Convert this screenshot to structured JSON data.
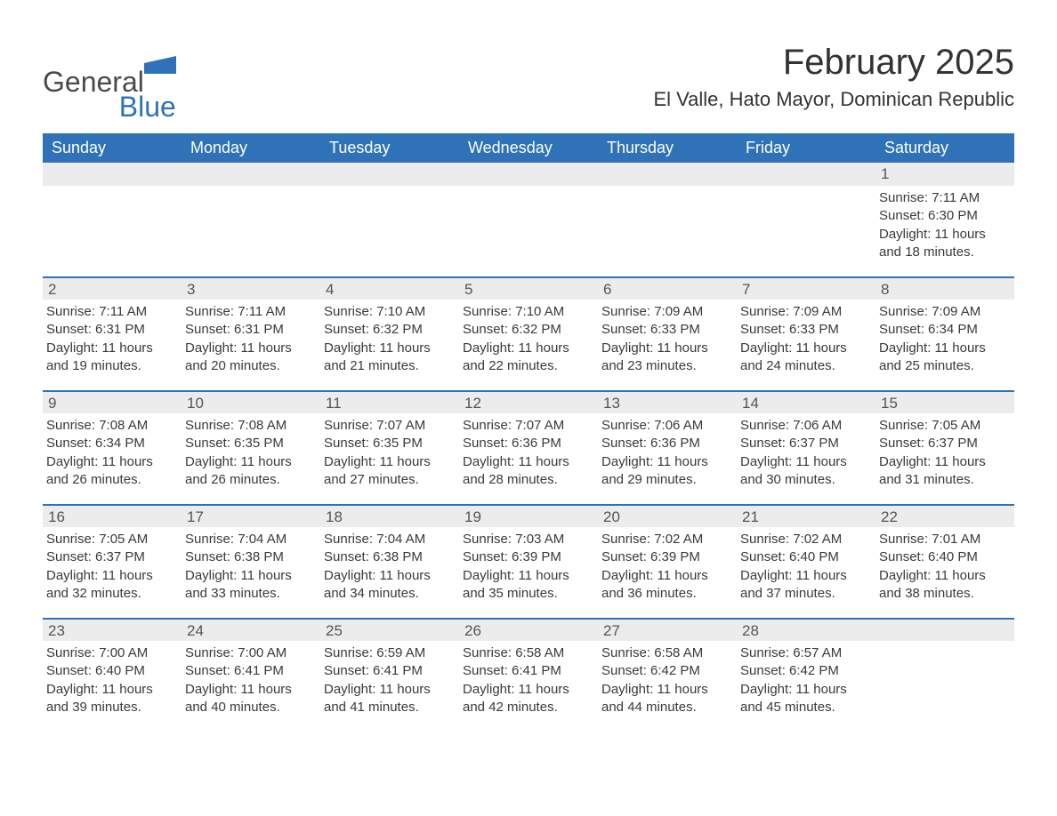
{
  "brand": {
    "name_line1": "General",
    "name_line2": "Blue",
    "logo_color": "#2f72b8"
  },
  "title": {
    "month": "February 2025",
    "location": "El Valle, Hato Mayor, Dominican Republic"
  },
  "colors": {
    "header_bg": "#2f72b8",
    "header_text": "#ffffff",
    "daynum_bg": "#ececec",
    "body_text": "#3a3a3a",
    "page_bg": "#ffffff",
    "row_border": "#2f72b8"
  },
  "typography": {
    "month_fontsize": 40,
    "location_fontsize": 22,
    "dow_fontsize": 18,
    "daynum_fontsize": 17,
    "body_fontsize": 15
  },
  "calendar": {
    "days_of_week": [
      "Sunday",
      "Monday",
      "Tuesday",
      "Wednesday",
      "Thursday",
      "Friday",
      "Saturday"
    ],
    "weeks": [
      [
        {
          "num": "",
          "sunrise": "",
          "sunset": "",
          "daylight": ""
        },
        {
          "num": "",
          "sunrise": "",
          "sunset": "",
          "daylight": ""
        },
        {
          "num": "",
          "sunrise": "",
          "sunset": "",
          "daylight": ""
        },
        {
          "num": "",
          "sunrise": "",
          "sunset": "",
          "daylight": ""
        },
        {
          "num": "",
          "sunrise": "",
          "sunset": "",
          "daylight": ""
        },
        {
          "num": "",
          "sunrise": "",
          "sunset": "",
          "daylight": ""
        },
        {
          "num": "1",
          "sunrise": "Sunrise: 7:11 AM",
          "sunset": "Sunset: 6:30 PM",
          "daylight": "Daylight: 11 hours and 18 minutes."
        }
      ],
      [
        {
          "num": "2",
          "sunrise": "Sunrise: 7:11 AM",
          "sunset": "Sunset: 6:31 PM",
          "daylight": "Daylight: 11 hours and 19 minutes."
        },
        {
          "num": "3",
          "sunrise": "Sunrise: 7:11 AM",
          "sunset": "Sunset: 6:31 PM",
          "daylight": "Daylight: 11 hours and 20 minutes."
        },
        {
          "num": "4",
          "sunrise": "Sunrise: 7:10 AM",
          "sunset": "Sunset: 6:32 PM",
          "daylight": "Daylight: 11 hours and 21 minutes."
        },
        {
          "num": "5",
          "sunrise": "Sunrise: 7:10 AM",
          "sunset": "Sunset: 6:32 PM",
          "daylight": "Daylight: 11 hours and 22 minutes."
        },
        {
          "num": "6",
          "sunrise": "Sunrise: 7:09 AM",
          "sunset": "Sunset: 6:33 PM",
          "daylight": "Daylight: 11 hours and 23 minutes."
        },
        {
          "num": "7",
          "sunrise": "Sunrise: 7:09 AM",
          "sunset": "Sunset: 6:33 PM",
          "daylight": "Daylight: 11 hours and 24 minutes."
        },
        {
          "num": "8",
          "sunrise": "Sunrise: 7:09 AM",
          "sunset": "Sunset: 6:34 PM",
          "daylight": "Daylight: 11 hours and 25 minutes."
        }
      ],
      [
        {
          "num": "9",
          "sunrise": "Sunrise: 7:08 AM",
          "sunset": "Sunset: 6:34 PM",
          "daylight": "Daylight: 11 hours and 26 minutes."
        },
        {
          "num": "10",
          "sunrise": "Sunrise: 7:08 AM",
          "sunset": "Sunset: 6:35 PM",
          "daylight": "Daylight: 11 hours and 26 minutes."
        },
        {
          "num": "11",
          "sunrise": "Sunrise: 7:07 AM",
          "sunset": "Sunset: 6:35 PM",
          "daylight": "Daylight: 11 hours and 27 minutes."
        },
        {
          "num": "12",
          "sunrise": "Sunrise: 7:07 AM",
          "sunset": "Sunset: 6:36 PM",
          "daylight": "Daylight: 11 hours and 28 minutes."
        },
        {
          "num": "13",
          "sunrise": "Sunrise: 7:06 AM",
          "sunset": "Sunset: 6:36 PM",
          "daylight": "Daylight: 11 hours and 29 minutes."
        },
        {
          "num": "14",
          "sunrise": "Sunrise: 7:06 AM",
          "sunset": "Sunset: 6:37 PM",
          "daylight": "Daylight: 11 hours and 30 minutes."
        },
        {
          "num": "15",
          "sunrise": "Sunrise: 7:05 AM",
          "sunset": "Sunset: 6:37 PM",
          "daylight": "Daylight: 11 hours and 31 minutes."
        }
      ],
      [
        {
          "num": "16",
          "sunrise": "Sunrise: 7:05 AM",
          "sunset": "Sunset: 6:37 PM",
          "daylight": "Daylight: 11 hours and 32 minutes."
        },
        {
          "num": "17",
          "sunrise": "Sunrise: 7:04 AM",
          "sunset": "Sunset: 6:38 PM",
          "daylight": "Daylight: 11 hours and 33 minutes."
        },
        {
          "num": "18",
          "sunrise": "Sunrise: 7:04 AM",
          "sunset": "Sunset: 6:38 PM",
          "daylight": "Daylight: 11 hours and 34 minutes."
        },
        {
          "num": "19",
          "sunrise": "Sunrise: 7:03 AM",
          "sunset": "Sunset: 6:39 PM",
          "daylight": "Daylight: 11 hours and 35 minutes."
        },
        {
          "num": "20",
          "sunrise": "Sunrise: 7:02 AM",
          "sunset": "Sunset: 6:39 PM",
          "daylight": "Daylight: 11 hours and 36 minutes."
        },
        {
          "num": "21",
          "sunrise": "Sunrise: 7:02 AM",
          "sunset": "Sunset: 6:40 PM",
          "daylight": "Daylight: 11 hours and 37 minutes."
        },
        {
          "num": "22",
          "sunrise": "Sunrise: 7:01 AM",
          "sunset": "Sunset: 6:40 PM",
          "daylight": "Daylight: 11 hours and 38 minutes."
        }
      ],
      [
        {
          "num": "23",
          "sunrise": "Sunrise: 7:00 AM",
          "sunset": "Sunset: 6:40 PM",
          "daylight": "Daylight: 11 hours and 39 minutes."
        },
        {
          "num": "24",
          "sunrise": "Sunrise: 7:00 AM",
          "sunset": "Sunset: 6:41 PM",
          "daylight": "Daylight: 11 hours and 40 minutes."
        },
        {
          "num": "25",
          "sunrise": "Sunrise: 6:59 AM",
          "sunset": "Sunset: 6:41 PM",
          "daylight": "Daylight: 11 hours and 41 minutes."
        },
        {
          "num": "26",
          "sunrise": "Sunrise: 6:58 AM",
          "sunset": "Sunset: 6:41 PM",
          "daylight": "Daylight: 11 hours and 42 minutes."
        },
        {
          "num": "27",
          "sunrise": "Sunrise: 6:58 AM",
          "sunset": "Sunset: 6:42 PM",
          "daylight": "Daylight: 11 hours and 44 minutes."
        },
        {
          "num": "28",
          "sunrise": "Sunrise: 6:57 AM",
          "sunset": "Sunset: 6:42 PM",
          "daylight": "Daylight: 11 hours and 45 minutes."
        },
        {
          "num": "",
          "sunrise": "",
          "sunset": "",
          "daylight": ""
        }
      ]
    ]
  }
}
